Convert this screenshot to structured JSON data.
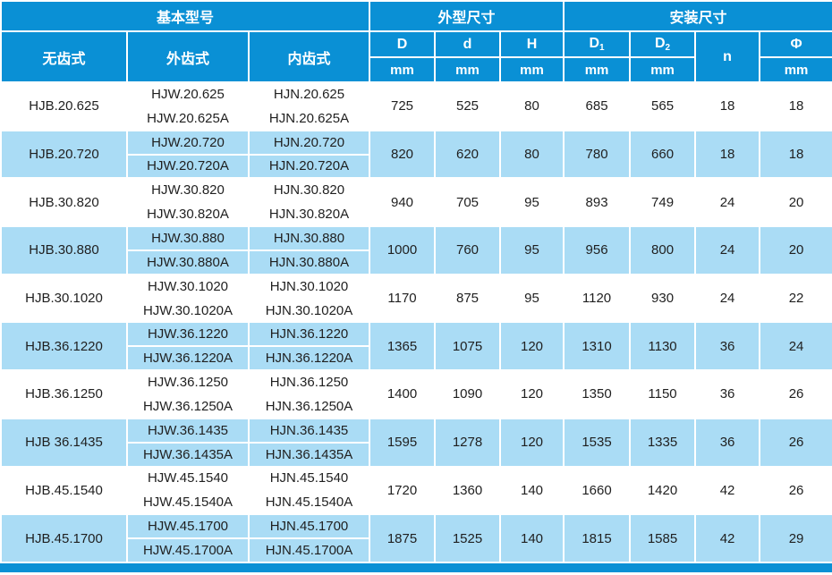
{
  "colors": {
    "header_blue": "#0a90d5",
    "row_alt_blue": "#aadcf5",
    "row_white": "#ffffff",
    "text_dark": "#1f1f1f",
    "text_light": "#ffffff"
  },
  "table": {
    "header": {
      "groups": [
        {
          "label": "基本型号",
          "span": 3
        },
        {
          "label": "外型尺寸",
          "span": 3
        },
        {
          "label": "安装尺寸",
          "span": 4
        }
      ],
      "model_columns": [
        "无齿式",
        "外齿式",
        "内齿式"
      ],
      "dim_columns": [
        {
          "base": "D",
          "sub": "",
          "unit": "mm"
        },
        {
          "base": "d",
          "sub": "",
          "unit": "mm"
        },
        {
          "base": "H",
          "sub": "",
          "unit": "mm"
        },
        {
          "base": "D",
          "sub": "1",
          "unit": "mm"
        },
        {
          "base": "D",
          "sub": "2",
          "unit": "mm"
        },
        {
          "base": "n",
          "sub": "",
          "unit": ""
        },
        {
          "base": "Φ",
          "sub": "",
          "unit": "mm"
        }
      ]
    },
    "rows": [
      {
        "plain": "HJB.20.625",
        "external": [
          "HJW.20.625",
          "HJW.20.625A"
        ],
        "internal": [
          "HJN.20.625",
          "HJN.20.625A"
        ],
        "dims": [
          "725",
          "525",
          "80",
          "685",
          "565",
          "18",
          "18"
        ]
      },
      {
        "plain": "HJB.20.720",
        "external": [
          "HJW.20.720",
          "HJW.20.720A"
        ],
        "internal": [
          "HJN.20.720",
          "HJN.20.720A"
        ],
        "dims": [
          "820",
          "620",
          "80",
          "780",
          "660",
          "18",
          "18"
        ]
      },
      {
        "plain": "HJB.30.820",
        "external": [
          "HJW.30.820",
          "HJW.30.820A"
        ],
        "internal": [
          "HJN.30.820",
          "HJN.30.820A"
        ],
        "dims": [
          "940",
          "705",
          "95",
          "893",
          "749",
          "24",
          "20"
        ]
      },
      {
        "plain": "HJB.30.880",
        "external": [
          "HJW.30.880",
          "HJW.30.880A"
        ],
        "internal": [
          "HJN.30.880",
          "HJN.30.880A"
        ],
        "dims": [
          "1000",
          "760",
          "95",
          "956",
          "800",
          "24",
          "20"
        ]
      },
      {
        "plain": "HJB.30.1020",
        "external": [
          "HJW.30.1020",
          "HJW.30.1020A"
        ],
        "internal": [
          "HJN.30.1020",
          "HJN.30.1020A"
        ],
        "dims": [
          "1170",
          "875",
          "95",
          "1120",
          "930",
          "24",
          "22"
        ]
      },
      {
        "plain": "HJB.36.1220",
        "external": [
          "HJW.36.1220",
          "HJW.36.1220A"
        ],
        "internal": [
          "HJN.36.1220",
          "HJN.36.1220A"
        ],
        "dims": [
          "1365",
          "1075",
          "120",
          "1310",
          "1130",
          "36",
          "24"
        ]
      },
      {
        "plain": "HJB.36.1250",
        "external": [
          "HJW.36.1250",
          "HJW.36.1250A"
        ],
        "internal": [
          "HJN.36.1250",
          "HJN.36.1250A"
        ],
        "dims": [
          "1400",
          "1090",
          "120",
          "1350",
          "1150",
          "36",
          "26"
        ]
      },
      {
        "plain": "HJB 36.1435",
        "external": [
          "HJW.36.1435",
          "HJW.36.1435A"
        ],
        "internal": [
          "HJN.36.1435",
          "HJN.36.1435A"
        ],
        "dims": [
          "1595",
          "1278",
          "120",
          "1535",
          "1335",
          "36",
          "26"
        ]
      },
      {
        "plain": "HJB.45.1540",
        "external": [
          "HJW.45.1540",
          "HJW.45.1540A"
        ],
        "internal": [
          "HJN.45.1540",
          "HJN.45.1540A"
        ],
        "dims": [
          "1720",
          "1360",
          "140",
          "1660",
          "1420",
          "42",
          "26"
        ]
      },
      {
        "plain": "HJB.45.1700",
        "external": [
          "HJW.45.1700",
          "HJW.45.1700A"
        ],
        "internal": [
          "HJN.45.1700",
          "HJN.45.1700A"
        ],
        "dims": [
          "1875",
          "1525",
          "140",
          "1815",
          "1585",
          "42",
          "29"
        ]
      }
    ]
  }
}
